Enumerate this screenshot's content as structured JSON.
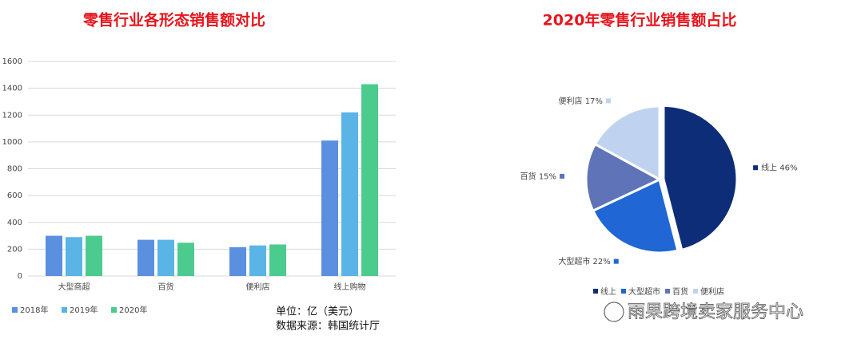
{
  "chart_data": [
    {
      "type": "bar",
      "title": "零售行业各形态销售额对比",
      "categories": [
        "大型商超",
        "百货",
        "便利店",
        "线上购物"
      ],
      "series": [
        {
          "name": "2018年",
          "color": "#5b8fe0",
          "values": [
            300,
            270,
            215,
            1010
          ]
        },
        {
          "name": "2019年",
          "color": "#5ab4e6",
          "values": [
            290,
            270,
            228,
            1220
          ]
        },
        {
          "name": "2020年",
          "color": "#4ccb8f",
          "values": [
            300,
            248,
            235,
            1430
          ]
        }
      ],
      "ylim": [
        0,
        1600
      ],
      "yticks": [
        0,
        200,
        400,
        600,
        800,
        1000,
        1200,
        1400,
        1600
      ],
      "grid": true,
      "legend": "bottom-left",
      "annotations": [
        "单位：亿（美元）",
        "数据来源：韩国统计厅"
      ]
    },
    {
      "type": "pie",
      "title": "2020年零售行业销售额占比",
      "categories": [
        "线上",
        "大型超市",
        "百货",
        "便利店"
      ],
      "values": [
        46,
        22,
        15,
        17
      ],
      "value_labels": [
        "线上 46%",
        "大型超市 22%",
        "百货 15%",
        "便利店 17%"
      ],
      "colors": [
        "#0e2d78",
        "#2066d4",
        "#5f73b8",
        "#bfd3f1"
      ],
      "legend": "bottom"
    }
  ],
  "watermark": "雨果跨境卖家服务中心"
}
